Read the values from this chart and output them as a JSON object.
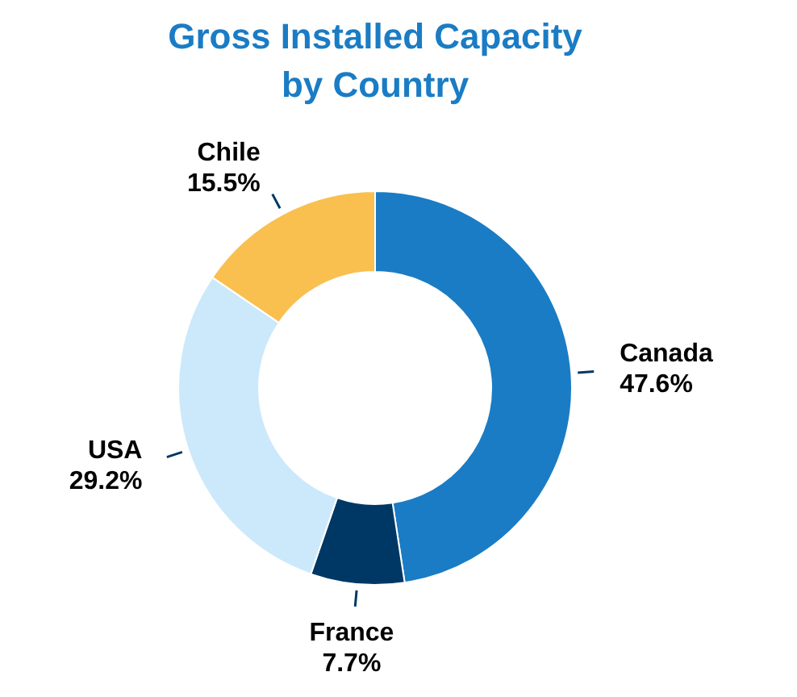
{
  "chart_data": {
    "type": "donut",
    "title": "Gross Installed Capacity\nby Country",
    "categories": [
      "Canada",
      "France",
      "USA",
      "Chile"
    ],
    "values": [
      47.6,
      7.7,
      29.2,
      15.5
    ],
    "colors": [
      "#1a7cc4",
      "#003865",
      "#cce9fb",
      "#f9c04f"
    ],
    "value_labels": [
      "47.6%",
      "7.7%",
      "29.2%",
      "15.5%"
    ]
  }
}
